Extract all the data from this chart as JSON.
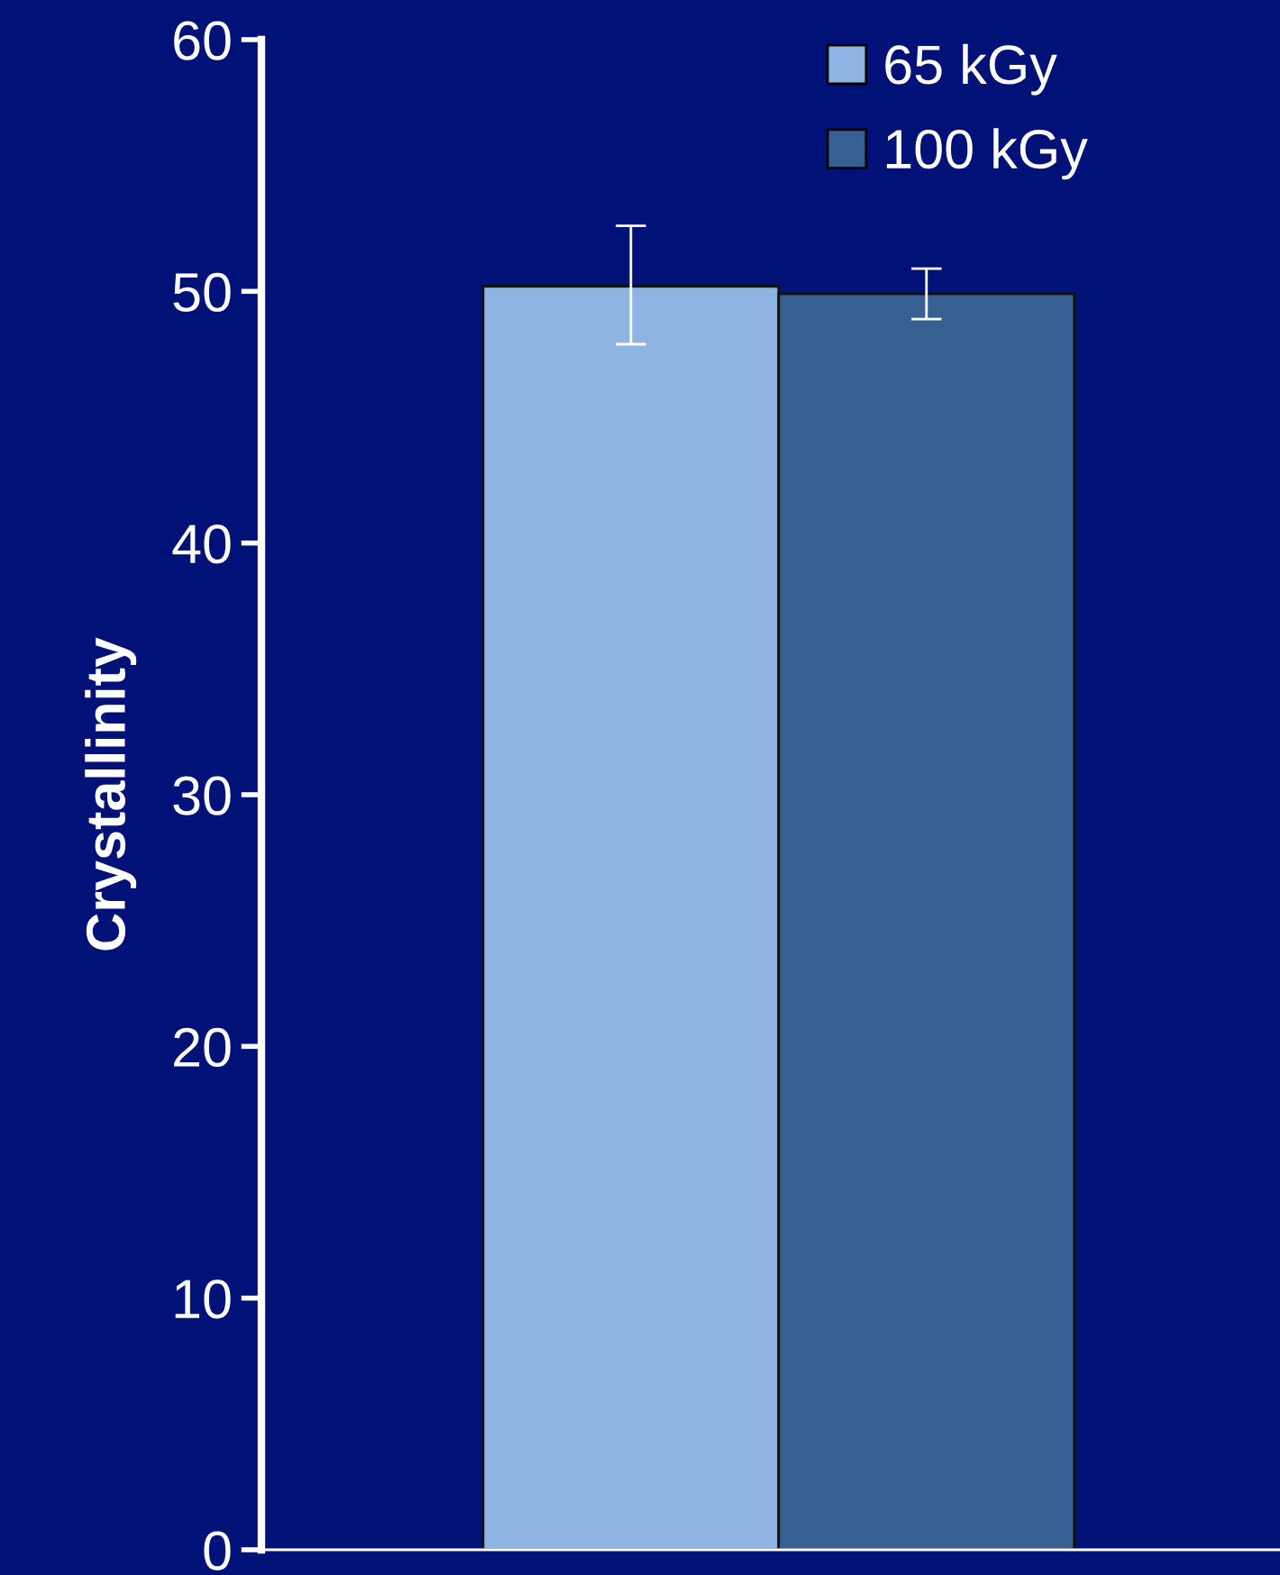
{
  "chart_data": {
    "type": "bar",
    "ylabel": "Crystallinity",
    "categories": [
      null
    ],
    "series": [
      {
        "name": "65 kGy",
        "color": "#8eb4e3",
        "values": [
          50.2
        ],
        "errors": [
          [
            47.9,
            52.6
          ]
        ]
      },
      {
        "name": "100 kGy",
        "color": "#366092",
        "values": [
          49.9
        ],
        "errors": [
          [
            48.9,
            50.9
          ]
        ]
      }
    ],
    "ylim": [
      0,
      60
    ],
    "yticks": [
      0,
      10,
      20,
      30,
      40,
      50,
      60
    ],
    "grid": false,
    "legend": "top right",
    "tick_labels": "y"
  }
}
